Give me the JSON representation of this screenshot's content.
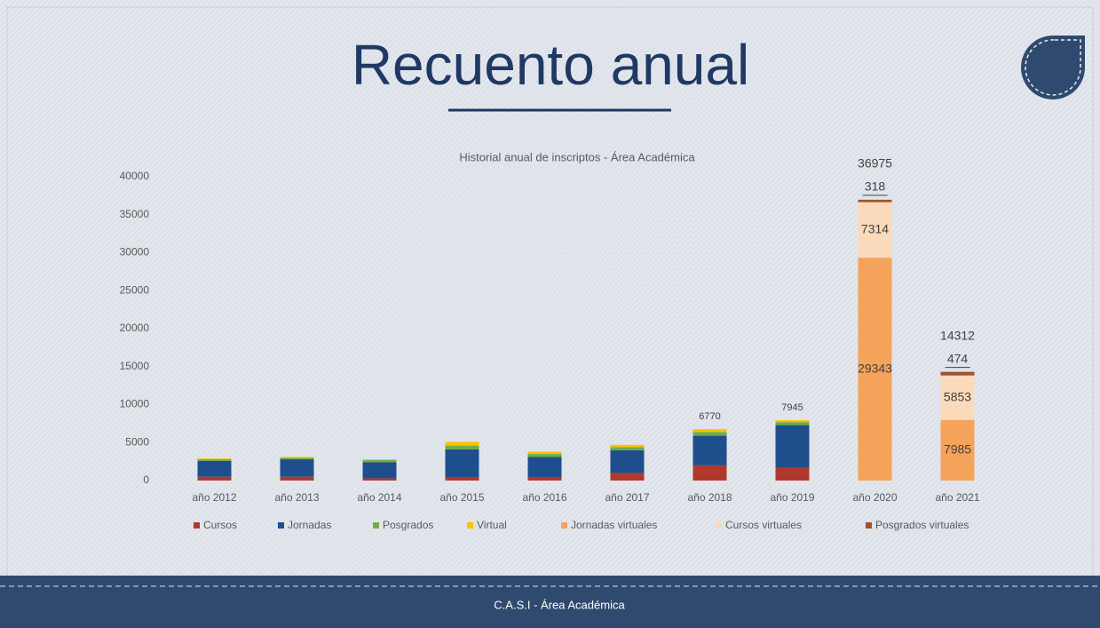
{
  "slide_title": "Recuento anual",
  "footer": "C.A.S.I - Área Académica",
  "chart_data": {
    "type": "stacked_bar",
    "title": "Historial anual de inscriptos - Área Académica",
    "categories": [
      "año 2012",
      "año 2013",
      "año 2014",
      "año 2015",
      "año 2016",
      "año 2017",
      "año 2018",
      "año 2019",
      "año 2020",
      "año 2021"
    ],
    "series": [
      {
        "name": "Cursos",
        "color": "#b0392e",
        "values": [
          500,
          500,
          300,
          400,
          400,
          1000,
          2000,
          1700,
          null,
          null
        ]
      },
      {
        "name": "Jornadas",
        "color": "#1f4e8c",
        "values": [
          2100,
          2300,
          2100,
          3700,
          2700,
          3000,
          3900,
          5600,
          null,
          null
        ]
      },
      {
        "name": "Posgrados",
        "color": "#70ad47",
        "values": [
          200,
          200,
          300,
          500,
          400,
          400,
          500,
          400,
          null,
          null
        ]
      },
      {
        "name": "Virtual",
        "color": "#ffc000",
        "values": [
          100,
          100,
          100,
          500,
          300,
          300,
          370,
          245,
          null,
          null
        ]
      },
      {
        "name": "Jornadas virtuales",
        "color": "#f5a35a",
        "values": [
          null,
          null,
          null,
          null,
          null,
          null,
          null,
          null,
          29343,
          7985
        ]
      },
      {
        "name": "Cursos virtuales",
        "color": "#fbd9bb",
        "values": [
          null,
          null,
          null,
          null,
          null,
          null,
          null,
          null,
          7314,
          5853
        ]
      },
      {
        "name": "Posgrados virtuales",
        "color": "#a0522d",
        "values": [
          null,
          null,
          null,
          null,
          null,
          null,
          null,
          null,
          318,
          474
        ]
      }
    ],
    "totals": [
      null,
      null,
      null,
      null,
      null,
      null,
      6770,
      7945,
      36975,
      14312
    ],
    "ylim": [
      0,
      40000
    ],
    "yticks": [
      0,
      5000,
      10000,
      15000,
      20000,
      25000,
      30000,
      35000,
      40000
    ],
    "grid": false,
    "legend": "bottom"
  }
}
